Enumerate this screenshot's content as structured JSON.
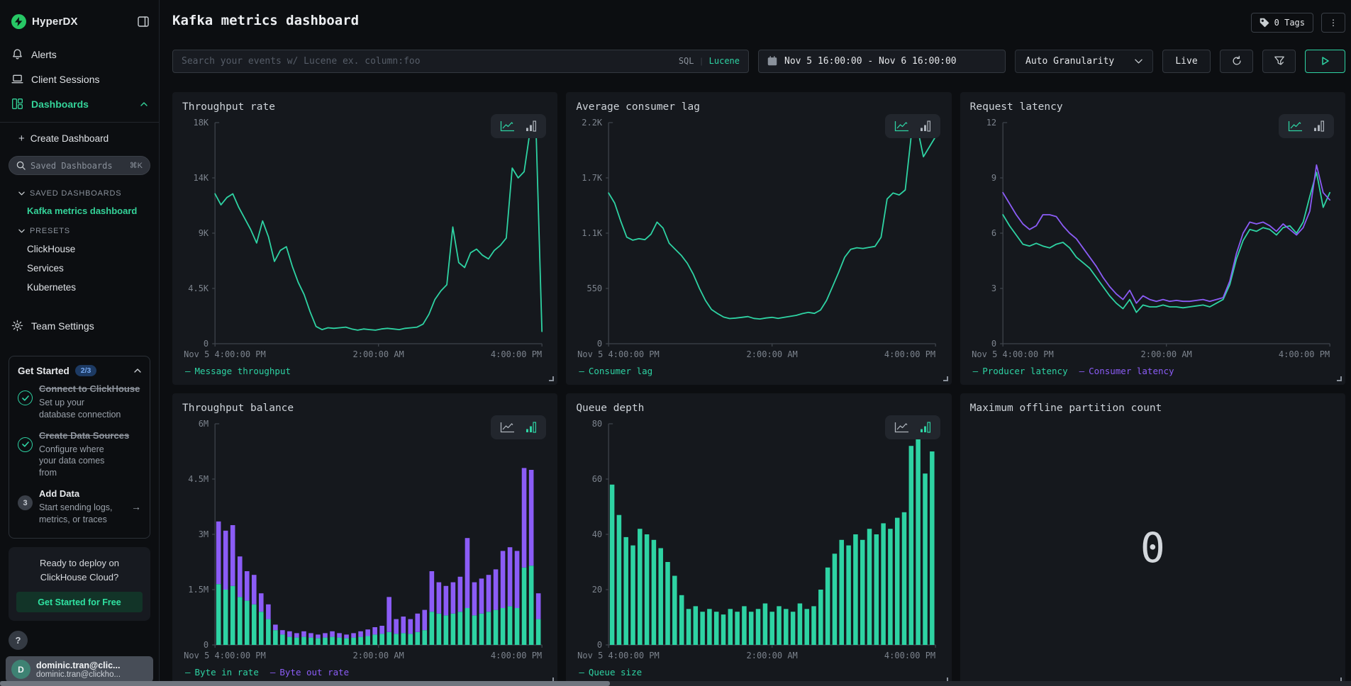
{
  "sidebar": {
    "logo": "HyperDX",
    "nav": [
      {
        "label": "Alerts",
        "icon": "bell-icon",
        "active": false
      },
      {
        "label": "Client Sessions",
        "icon": "laptop-icon",
        "active": false
      },
      {
        "label": "Dashboards",
        "icon": "dashboard-grid-icon",
        "active": true,
        "chevron": "up"
      }
    ],
    "create_label": "Create Dashboard",
    "search": {
      "placeholder": "Saved Dashboards",
      "shortcut": "⌘K"
    },
    "saved_section": {
      "label": "SAVED DASHBOARDS",
      "items": [
        "Kafka metrics dashboard"
      ]
    },
    "presets_section": {
      "label": "PRESETS",
      "items": [
        "ClickHouse",
        "Services",
        "Kubernetes"
      ]
    },
    "team_settings": "Team Settings",
    "get_started": {
      "title": "Get Started",
      "badge": "2/3",
      "items": [
        {
          "title": "Connect to ClickHouse",
          "desc": "Set up your database connection",
          "done": true
        },
        {
          "title": "Create Data Sources",
          "desc": "Configure where your data comes from",
          "done": true
        },
        {
          "title": "Add Data",
          "desc": "Start sending logs, metrics, or traces",
          "done": false,
          "step": "3",
          "arrow": "→"
        }
      ]
    },
    "deploy": {
      "line1": "Ready to deploy on",
      "line2": "ClickHouse Cloud?",
      "cta": "Get Started for Free"
    },
    "help": "?",
    "user": {
      "initial": "D",
      "name": "dominic.tran@clic...",
      "email": "dominic.tran@clickho..."
    }
  },
  "header": {
    "title": "Kafka metrics dashboard",
    "tags_label": "0 Tags",
    "kebab": "⋮",
    "search_placeholder": "Search your events w/ Lucene ex. column:foo",
    "sql": "SQL",
    "separator": "|",
    "lucene": "Lucene",
    "date_range": "Nov 5 16:00:00 - Nov 6 16:00:00",
    "granularity": "Auto Granularity",
    "live": "Live"
  },
  "colors": {
    "green": "#2ed3a3",
    "purple": "#8b5cf6",
    "axis": "#3e434b",
    "tick_text": "#7c838d",
    "accent_sidebar_green": "#34d399"
  },
  "chart_data": [
    {
      "id": "throughput-rate",
      "title": "Throughput rate",
      "type": "line",
      "toggle_active": "line",
      "ymax": 18000,
      "yticks": [
        "18K",
        "14K",
        "9K",
        "4.5K",
        "0"
      ],
      "xticks": [
        "Nov 5 4:00:00 PM",
        "2:00:00 AM",
        "4:00:00 PM"
      ],
      "legend": [
        {
          "label": "Message throughput",
          "color": "#2ed3a3"
        }
      ],
      "series": [
        {
          "name": "Message throughput",
          "color": "#2ed3a3",
          "values": [
            12200,
            11300,
            11900,
            12200,
            11100,
            10200,
            9300,
            8200,
            10000,
            8700,
            6700,
            7600,
            7900,
            6300,
            5000,
            4000,
            2600,
            1400,
            1150,
            1300,
            1250,
            1300,
            1350,
            1200,
            1100,
            1200,
            1150,
            1100,
            1200,
            1250,
            1200,
            1150,
            1250,
            1300,
            1350,
            1600,
            2400,
            3600,
            4300,
            4800,
            9500,
            6600,
            6200,
            7400,
            7700,
            7200,
            6900,
            7600,
            8000,
            8600,
            14300,
            13500,
            14000,
            17300,
            17600,
            1000
          ]
        }
      ]
    },
    {
      "id": "avg-consumer-lag",
      "title": "Average consumer lag",
      "type": "line",
      "toggle_active": "line",
      "ymax": 2200,
      "yticks": [
        "2.2K",
        "1.7K",
        "1.1K",
        "550",
        "0"
      ],
      "xticks": [
        "Nov 5 4:00:00 PM",
        "2:00:00 AM",
        "4:00:00 PM"
      ],
      "legend": [
        {
          "label": "Consumer lag",
          "color": "#2ed3a3"
        }
      ],
      "series": [
        {
          "name": "Consumer lag",
          "color": "#2ed3a3",
          "values": [
            1500,
            1400,
            1220,
            1060,
            1030,
            1045,
            1035,
            1090,
            1210,
            1150,
            1000,
            940,
            880,
            800,
            690,
            550,
            430,
            340,
            300,
            265,
            250,
            255,
            262,
            270,
            252,
            246,
            256,
            262,
            252,
            262,
            272,
            282,
            300,
            312,
            302,
            335,
            430,
            570,
            710,
            860,
            940,
            955,
            948,
            958,
            968,
            1060,
            1440,
            1500,
            1480,
            1530,
            2080,
            2150,
            1860,
            1960,
            2060
          ]
        }
      ]
    },
    {
      "id": "request-latency",
      "title": "Request latency",
      "type": "line",
      "toggle_active": "line",
      "ymax": 12,
      "yticks": [
        "12",
        "9",
        "6",
        "3",
        "0"
      ],
      "xticks": [
        "Nov 5 4:00:00 PM",
        "2:00:00 AM",
        "4:00:00 PM"
      ],
      "legend": [
        {
          "label": "Producer latency",
          "color": "#2ed3a3"
        },
        {
          "label": "Consumer latency",
          "color": "#8b5cf6"
        }
      ],
      "series": [
        {
          "name": "Producer latency",
          "color": "#2ed3a3",
          "values": [
            7.0,
            6.4,
            5.9,
            5.4,
            5.3,
            5.45,
            5.3,
            5.2,
            5.4,
            5.5,
            5.2,
            4.7,
            4.4,
            4.1,
            3.6,
            3.1,
            2.6,
            2.2,
            1.9,
            2.4,
            1.7,
            2.1,
            2.0,
            2.0,
            2.1,
            2.0,
            2.0,
            1.95,
            2.0,
            2.05,
            2.1,
            2.0,
            2.2,
            2.4,
            3.2,
            4.6,
            5.6,
            6.2,
            6.1,
            6.3,
            6.2,
            5.9,
            6.3,
            6.4,
            6.0,
            6.6,
            8.0,
            9.3,
            7.4,
            8.2
          ]
        },
        {
          "name": "Consumer latency",
          "color": "#8b5cf6",
          "values": [
            8.2,
            7.6,
            7.0,
            6.5,
            6.2,
            6.4,
            7.0,
            7.0,
            6.9,
            6.4,
            6.0,
            5.7,
            5.2,
            4.7,
            4.2,
            3.6,
            3.1,
            2.7,
            2.4,
            2.9,
            2.2,
            2.6,
            2.4,
            2.3,
            2.4,
            2.3,
            2.35,
            2.3,
            2.3,
            2.35,
            2.4,
            2.3,
            2.4,
            2.5,
            3.4,
            4.9,
            6.0,
            6.6,
            6.5,
            6.6,
            6.4,
            6.1,
            6.5,
            6.2,
            5.9,
            6.3,
            7.2,
            9.7,
            8.2,
            7.8
          ]
        }
      ]
    },
    {
      "id": "throughput-balance",
      "title": "Throughput balance",
      "type": "stacked_bar",
      "toggle_active": "bar",
      "ymax": 6000000,
      "yticks": [
        "6M",
        "4.5M",
        "3M",
        "1.5M",
        "0"
      ],
      "xticks": [
        "Nov 5 4:00:00 PM",
        "2:00:00 AM",
        "4:00:00 PM"
      ],
      "legend": [
        {
          "label": "Byte in rate",
          "color": "#2ed3a3"
        },
        {
          "label": "Byte out rate",
          "color": "#8b5cf6"
        }
      ],
      "series": [
        {
          "name": "Byte in rate",
          "color": "#2ed3a3",
          "values": [
            1650000,
            1500000,
            1600000,
            1300000,
            1200000,
            1100000,
            900000,
            700000,
            400000,
            280000,
            220000,
            200000,
            220000,
            200000,
            180000,
            200000,
            220000,
            200000,
            180000,
            200000,
            220000,
            240000,
            280000,
            300000,
            350000,
            300000,
            320000,
            300000,
            350000,
            400000,
            900000,
            850000,
            800000,
            850000,
            900000,
            1000000,
            800000,
            850000,
            900000,
            950000,
            1000000,
            1050000,
            1000000,
            2100000,
            2150000,
            700000
          ]
        },
        {
          "name": "Byte out rate",
          "color": "#8b5cf6",
          "values": [
            1700000,
            1600000,
            1650000,
            1100000,
            800000,
            800000,
            500000,
            400000,
            150000,
            120000,
            150000,
            120000,
            150000,
            120000,
            100000,
            120000,
            150000,
            120000,
            100000,
            120000,
            150000,
            180000,
            200000,
            220000,
            950000,
            400000,
            450000,
            400000,
            500000,
            550000,
            1100000,
            850000,
            800000,
            850000,
            950000,
            1900000,
            900000,
            950000,
            1000000,
            1100000,
            1550000,
            1600000,
            1550000,
            2700000,
            2600000,
            700000
          ]
        }
      ]
    },
    {
      "id": "queue-depth",
      "title": "Queue depth",
      "type": "bar",
      "toggle_active": "bar",
      "ymax": 80,
      "yticks": [
        "80",
        "60",
        "40",
        "20",
        "0"
      ],
      "xticks": [
        "Nov 5 4:00:00 PM",
        "2:00:00 AM",
        "4:00:00 PM"
      ],
      "legend": [
        {
          "label": "Queue size",
          "color": "#2ed3a3"
        }
      ],
      "series": [
        {
          "name": "Queue size",
          "color": "#2ed3a3",
          "values": [
            58,
            47,
            39,
            36,
            42,
            40,
            38,
            35,
            30,
            25,
            18,
            13,
            14,
            12,
            13,
            12,
            11,
            13,
            12,
            14,
            12,
            13,
            15,
            12,
            14,
            13,
            12,
            15,
            13,
            14,
            20,
            28,
            33,
            38,
            36,
            40,
            38,
            42,
            40,
            44,
            42,
            46,
            48,
            72,
            75,
            62,
            70
          ]
        }
      ]
    },
    {
      "id": "max-offline-partition",
      "title": "Maximum offline partition count",
      "type": "number",
      "value": "0"
    }
  ]
}
